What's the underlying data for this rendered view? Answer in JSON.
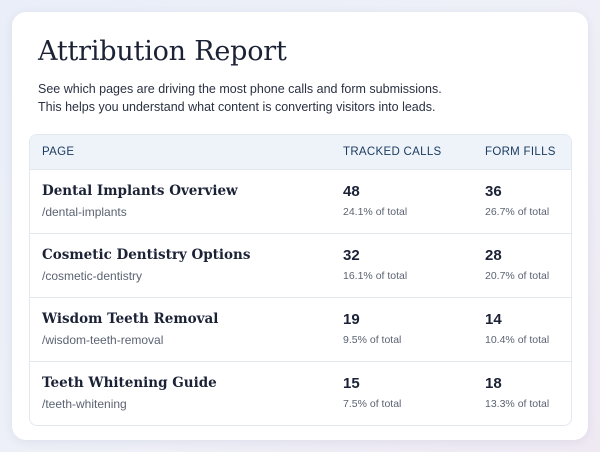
{
  "header": {
    "title": "Attribution Report",
    "description_line1": "See which pages are driving the most phone calls and form submissions.",
    "description_line2": "This helps you understand what content is converting visitors into leads."
  },
  "table": {
    "columns": {
      "page": "PAGE",
      "calls": "TRACKED CALLS",
      "forms": "FORM FILLS"
    },
    "rows": [
      {
        "title": "Dental Implants Overview",
        "path": "/dental-implants",
        "calls": "48",
        "calls_pct": "24.1% of total",
        "forms": "36",
        "forms_pct": "26.7% of total"
      },
      {
        "title": "Cosmetic Dentistry Options",
        "path": "/cosmetic-dentistry",
        "calls": "32",
        "calls_pct": "16.1% of total",
        "forms": "28",
        "forms_pct": "20.7% of total"
      },
      {
        "title": "Wisdom Teeth Removal",
        "path": "/wisdom-teeth-removal",
        "calls": "19",
        "calls_pct": "9.5% of total",
        "forms": "14",
        "forms_pct": "10.4% of total"
      },
      {
        "title": "Teeth Whitening Guide",
        "path": "/teeth-whitening",
        "calls": "15",
        "calls_pct": "7.5% of total",
        "forms": "18",
        "forms_pct": "13.3% of total"
      }
    ]
  }
}
